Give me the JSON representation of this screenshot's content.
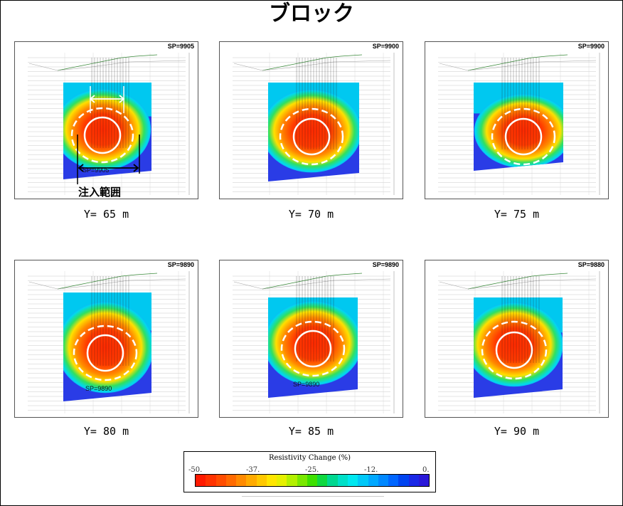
{
  "title": "ブロック",
  "panels": [
    {
      "sp": "SP=9905",
      "y_label": "Y= 65 m"
    },
    {
      "sp": "SP=9900",
      "y_label": "Y= 70 m"
    },
    {
      "sp": "SP=9900",
      "y_label": "Y= 75 m"
    },
    {
      "sp": "SP=9890",
      "y_label": "Y= 80 m"
    },
    {
      "sp": "SP=9890",
      "y_label": "Y= 85 m"
    },
    {
      "sp": "SP=9880",
      "y_label": "Y= 90 m"
    }
  ],
  "annotations": {
    "injection_range": "注入範囲",
    "panel1_inner_sp": "SP=9905",
    "panel4_inner_sp": "SP=9890",
    "panel5_inner_sp": "SP=9890"
  },
  "legend": {
    "title": "Resistivity Change (%)",
    "ticks": [
      "-50.",
      "-37.",
      "-25.",
      "-12.",
      "0."
    ],
    "colors": [
      "#ff1a00",
      "#ff3300",
      "#ff4d00",
      "#ff6a00",
      "#ff8a00",
      "#ffaa00",
      "#ffc800",
      "#ffe600",
      "#e6f000",
      "#b4f000",
      "#7ae800",
      "#3ee000",
      "#10d840",
      "#00d890",
      "#00e0c8",
      "#00e8f0",
      "#00c8f8",
      "#00a8ff",
      "#0088ff",
      "#0066ff",
      "#0044f0",
      "#1a28e6",
      "#2a18d8"
    ]
  }
}
